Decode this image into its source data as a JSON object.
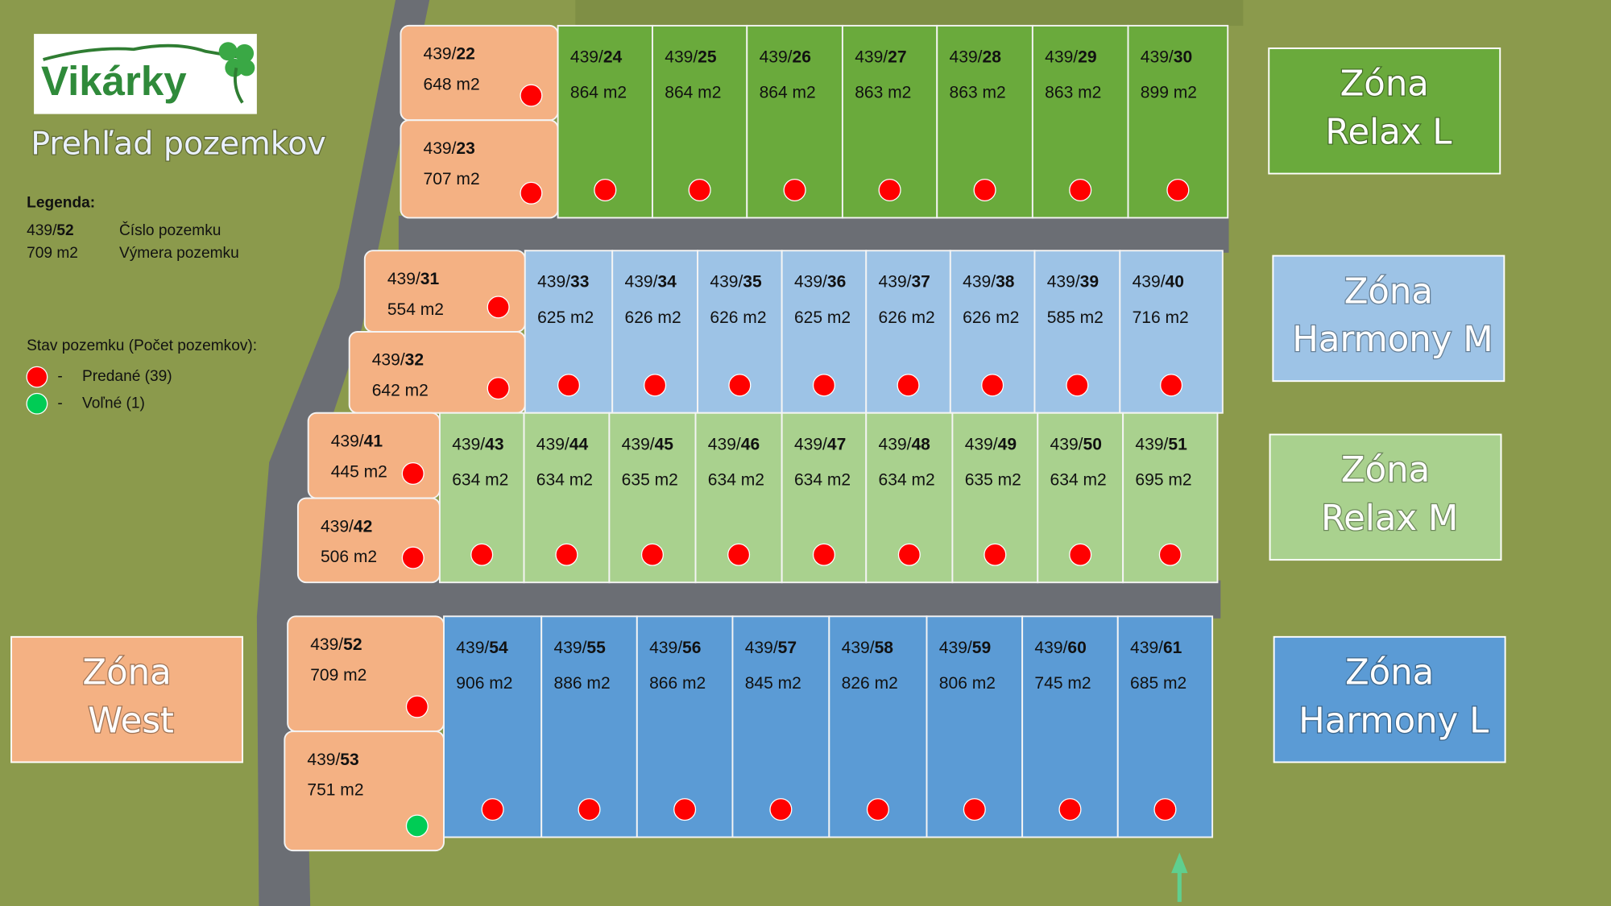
{
  "logo": "Vikárky",
  "subtitle": "Prehľad pozemkov",
  "legend": {
    "title": "Legenda:",
    "number_prefix": "439/",
    "number_suffix": "52",
    "number_text": "Číslo pozemku",
    "area": "709 m2",
    "area_text": "Výmera pozemku",
    "status_title": "Stav pozemku (Počet pozemkov):",
    "items": [
      {
        "dash": "-",
        "label": "Predané (39)",
        "color": "#ff0000"
      },
      {
        "dash": "-",
        "label": "Voľné (1)",
        "color": "#00cc55"
      }
    ]
  },
  "zones": [
    {
      "line1": "Zóna",
      "line2": "Relax L",
      "color": "#6aaa3c"
    },
    {
      "line1": "Zóna",
      "line2": "Harmony M",
      "color": "#9dc3e6"
    },
    {
      "line1": "Zóna",
      "line2": "Relax M",
      "color": "#a9d18e"
    },
    {
      "line1": "Zóna",
      "line2": "Harmony L",
      "color": "#5b9bd5"
    },
    {
      "line1": "Zóna",
      "line2": "West",
      "color": "#f4b183"
    }
  ],
  "plots": [
    {
      "prefix": "439/",
      "number": "22",
      "area": "648 m2",
      "zone": 4,
      "status": 0
    },
    {
      "prefix": "439/",
      "number": "23",
      "area": "707 m2",
      "zone": 4,
      "status": 0
    },
    {
      "prefix": "439/",
      "number": "24",
      "area": "864 m2",
      "zone": 0,
      "status": 0
    },
    {
      "prefix": "439/",
      "number": "25",
      "area": "864 m2",
      "zone": 0,
      "status": 0
    },
    {
      "prefix": "439/",
      "number": "26",
      "area": "864 m2",
      "zone": 0,
      "status": 0
    },
    {
      "prefix": "439/",
      "number": "27",
      "area": "863 m2",
      "zone": 0,
      "status": 0
    },
    {
      "prefix": "439/",
      "number": "28",
      "area": "863 m2",
      "zone": 0,
      "status": 0
    },
    {
      "prefix": "439/",
      "number": "29",
      "area": "863 m2",
      "zone": 0,
      "status": 0
    },
    {
      "prefix": "439/",
      "number": "30",
      "area": "899 m2",
      "zone": 0,
      "status": 0
    },
    {
      "prefix": "439/",
      "number": "31",
      "area": "554 m2",
      "zone": 4,
      "status": 0
    },
    {
      "prefix": "439/",
      "number": "32",
      "area": "642 m2",
      "zone": 4,
      "status": 0
    },
    {
      "prefix": "439/",
      "number": "33",
      "area": "625 m2",
      "zone": 1,
      "status": 0
    },
    {
      "prefix": "439/",
      "number": "34",
      "area": "626 m2",
      "zone": 1,
      "status": 0
    },
    {
      "prefix": "439/",
      "number": "35",
      "area": "626 m2",
      "zone": 1,
      "status": 0
    },
    {
      "prefix": "439/",
      "number": "36",
      "area": "625 m2",
      "zone": 1,
      "status": 0
    },
    {
      "prefix": "439/",
      "number": "37",
      "area": "626 m2",
      "zone": 1,
      "status": 0
    },
    {
      "prefix": "439/",
      "number": "38",
      "area": "626 m2",
      "zone": 1,
      "status": 0
    },
    {
      "prefix": "439/",
      "number": "39",
      "area": "585 m2",
      "zone": 1,
      "status": 0
    },
    {
      "prefix": "439/",
      "number": "40",
      "area": "716 m2",
      "zone": 1,
      "status": 0
    },
    {
      "prefix": "439/",
      "number": "41",
      "area": "445 m2",
      "zone": 4,
      "status": 0
    },
    {
      "prefix": "439/",
      "number": "42",
      "area": "506 m2",
      "zone": 4,
      "status": 0
    },
    {
      "prefix": "439/",
      "number": "43",
      "area": "634 m2",
      "zone": 2,
      "status": 0
    },
    {
      "prefix": "439/",
      "number": "44",
      "area": "634 m2",
      "zone": 2,
      "status": 0
    },
    {
      "prefix": "439/",
      "number": "45",
      "area": "635 m2",
      "zone": 2,
      "status": 0
    },
    {
      "prefix": "439/",
      "number": "46",
      "area": "634 m2",
      "zone": 2,
      "status": 0
    },
    {
      "prefix": "439/",
      "number": "47",
      "area": "634 m2",
      "zone": 2,
      "status": 0
    },
    {
      "prefix": "439/",
      "number": "48",
      "area": "634 m2",
      "zone": 2,
      "status": 0
    },
    {
      "prefix": "439/",
      "number": "49",
      "area": "635 m2",
      "zone": 2,
      "status": 0
    },
    {
      "prefix": "439/",
      "number": "50",
      "area": "634 m2",
      "zone": 2,
      "status": 0
    },
    {
      "prefix": "439/",
      "number": "51",
      "area": "695 m2",
      "zone": 2,
      "status": 0
    },
    {
      "prefix": "439/",
      "number": "52",
      "area": "709 m2",
      "zone": 4,
      "status": 0
    },
    {
      "prefix": "439/",
      "number": "53",
      "area": "751 m2",
      "zone": 4,
      "status": 1
    },
    {
      "prefix": "439/",
      "number": "54",
      "area": "906 m2",
      "zone": 3,
      "status": 0
    },
    {
      "prefix": "439/",
      "number": "55",
      "area": "886 m2",
      "zone": 3,
      "status": 0
    },
    {
      "prefix": "439/",
      "number": "56",
      "area": "866 m2",
      "zone": 3,
      "status": 0
    },
    {
      "prefix": "439/",
      "number": "57",
      "area": "845 m2",
      "zone": 3,
      "status": 0
    },
    {
      "prefix": "439/",
      "number": "58",
      "area": "826 m2",
      "zone": 3,
      "status": 0
    },
    {
      "prefix": "439/",
      "number": "59",
      "area": "806 m2",
      "zone": 3,
      "status": 0
    },
    {
      "prefix": "439/",
      "number": "60",
      "area": "745 m2",
      "zone": 3,
      "status": 0
    },
    {
      "prefix": "439/",
      "number": "61",
      "area": "685 m2",
      "zone": 3,
      "status": 0
    }
  ]
}
